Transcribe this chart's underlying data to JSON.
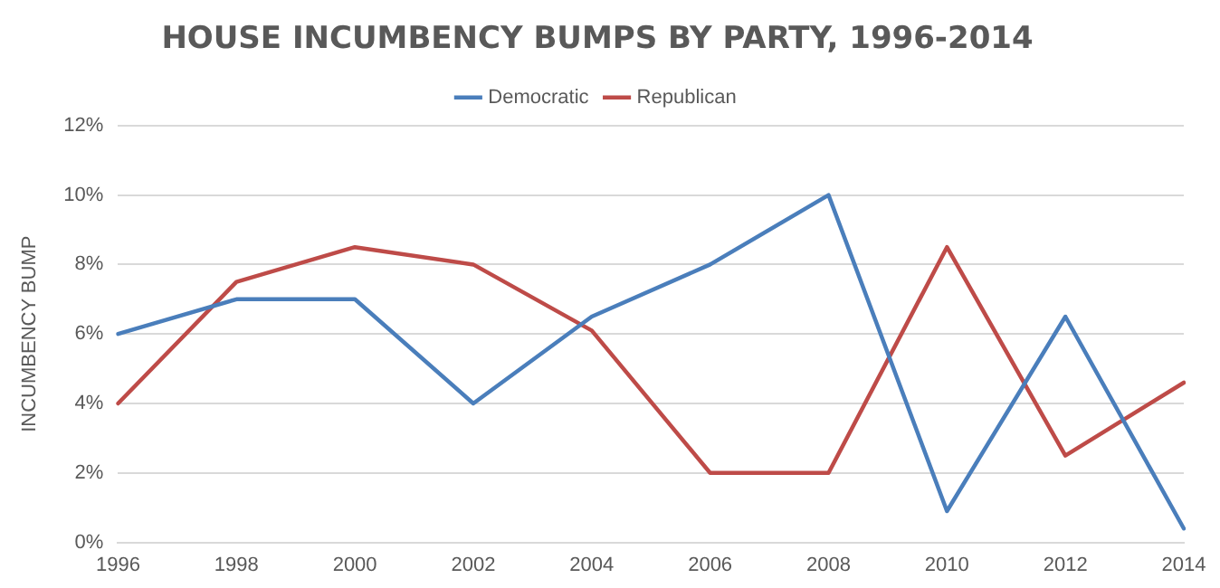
{
  "chart_data": {
    "type": "line",
    "title": "HOUSE INCUMBENCY BUMPS BY PARTY, 1996-2014",
    "ylabel": "INCUMBENCY BUMP",
    "categories": [
      "1996",
      "1998",
      "2000",
      "2002",
      "2004",
      "2006",
      "2008",
      "2010",
      "2012",
      "2014"
    ],
    "series": [
      {
        "name": "Democratic",
        "color": "#4a7ebb",
        "values": [
          6,
          7,
          7,
          4,
          6.5,
          8,
          10,
          0.9,
          6.5,
          0.4
        ]
      },
      {
        "name": "Republican",
        "color": "#be4b48",
        "values": [
          4,
          7.5,
          8.5,
          8,
          6.1,
          2,
          2,
          8.5,
          2.5,
          4.6
        ]
      }
    ],
    "ylim": [
      0,
      12
    ],
    "yticks": [
      {
        "value": 0,
        "label": "0%"
      },
      {
        "value": 2,
        "label": "2%"
      },
      {
        "value": 4,
        "label": "4%"
      },
      {
        "value": 6,
        "label": "6%"
      },
      {
        "value": 8,
        "label": "8%"
      },
      {
        "value": 10,
        "label": "10%"
      },
      {
        "value": 12,
        "label": "12%"
      }
    ],
    "grid": "y",
    "legend": "top",
    "marker": "none",
    "line_style": "solid"
  }
}
